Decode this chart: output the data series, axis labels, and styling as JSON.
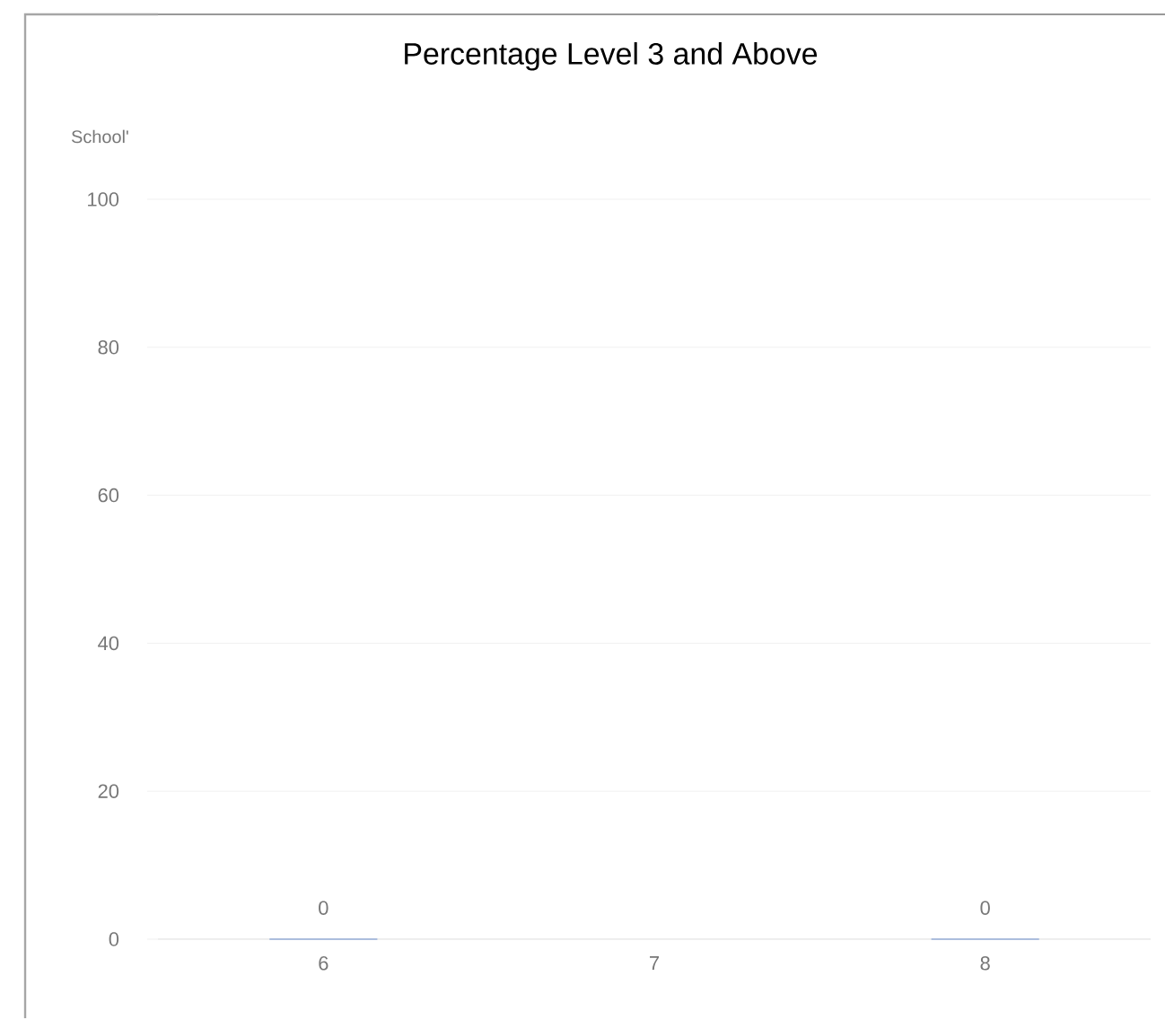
{
  "chart_data": {
    "type": "bar",
    "title": "Percentage Level 3 and Above",
    "ylabel": "School'",
    "categories": [
      "6",
      "7",
      "8"
    ],
    "values": [
      0,
      null,
      0
    ],
    "color": "#4472c4",
    "ylim": [
      0,
      100
    ],
    "yticks": [
      0,
      20,
      40,
      60,
      80,
      100
    ],
    "grid": "y",
    "data_labels": true
  }
}
